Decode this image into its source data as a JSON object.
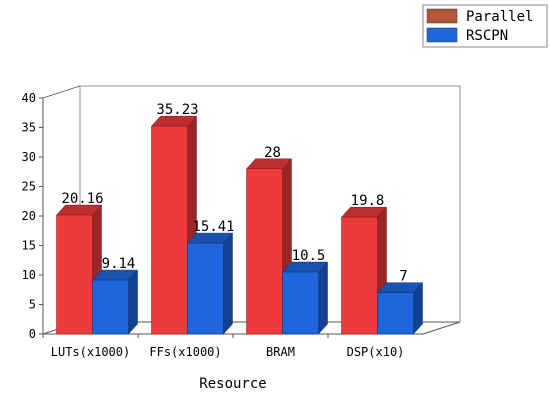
{
  "chart_data": {
    "type": "bar",
    "style": "3d-clustered",
    "title": "",
    "xlabel": "Resource",
    "ylabel": "",
    "ylim": [
      0,
      40
    ],
    "yticks": [
      0,
      5,
      10,
      15,
      20,
      25,
      30,
      35,
      40
    ],
    "grid": false,
    "legend_position": "top-right",
    "categories": [
      "LUTs(x1000)",
      "FFs(x1000)",
      "BRAM",
      "DSP(x10)"
    ],
    "series": [
      {
        "name": "Parallel",
        "values": [
          20.16,
          35.23,
          28,
          19.8
        ],
        "labels": [
          "20.16",
          "35.23",
          "28",
          "19.8"
        ],
        "color": "#ee3a3a",
        "legend_color": "#b5553a"
      },
      {
        "name": "RSCPN",
        "values": [
          9.14,
          15.41,
          10.5,
          7
        ],
        "labels": [
          "9.14",
          "15.41",
          "10.5",
          "7"
        ],
        "color": "#1f66dd",
        "legend_color": "#1f66dd"
      }
    ]
  }
}
